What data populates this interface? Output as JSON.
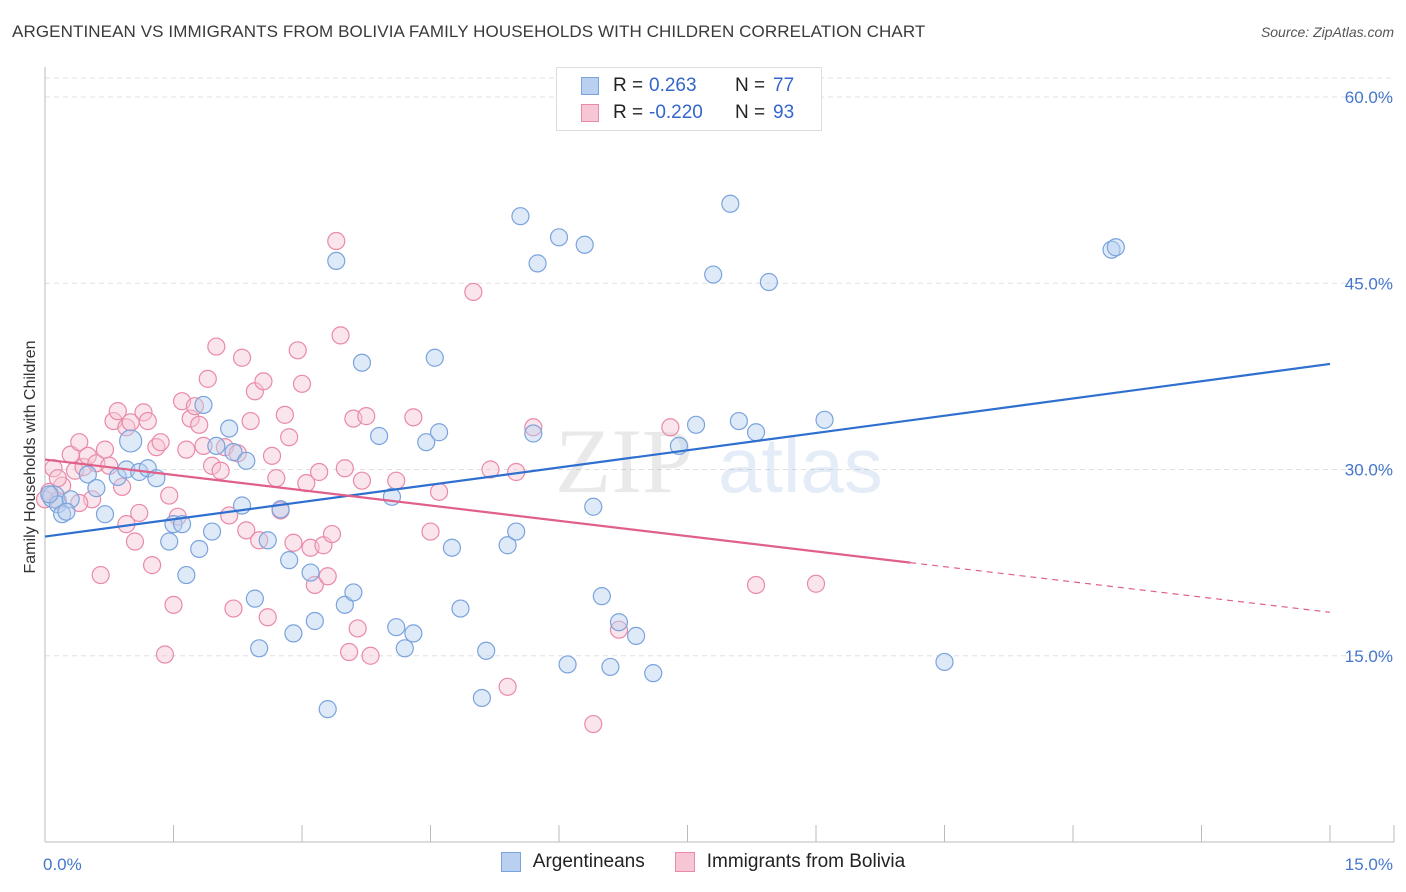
{
  "title": "ARGENTINEAN VS IMMIGRANTS FROM BOLIVIA FAMILY HOUSEHOLDS WITH CHILDREN CORRELATION CHART",
  "source": "Source: ZipAtlas.com",
  "watermark": {
    "zip": "ZIP",
    "atlas": "atlas"
  },
  "legend": {
    "rows": [
      {
        "r_label": "R =",
        "r_value": "0.263",
        "n_label": "N =",
        "n_value": "77",
        "fill": "#b9d0f0",
        "stroke": "#7aa3dd"
      },
      {
        "r_label": "R =",
        "r_value": "-0.220",
        "n_label": "N =",
        "n_value": "93",
        "fill": "#f7c6d5",
        "stroke": "#e98aa8"
      }
    ]
  },
  "bottom_legend": {
    "items": [
      {
        "label": "Argentineans",
        "fill": "#b9d0f0",
        "stroke": "#7aa3dd"
      },
      {
        "label": "Immigrants from Bolivia",
        "fill": "#f7c6d5",
        "stroke": "#e98aa8"
      }
    ]
  },
  "colors": {
    "blue_line": "#2f6fcf",
    "pink_line": "#e0608a",
    "tick_text": "#4477cc",
    "grid": "#e0e0e0"
  },
  "chart_data": {
    "type": "scatter",
    "title": "ARGENTINEAN VS IMMIGRANTS FROM BOLIVIA FAMILY HOUSEHOLDS WITH CHILDREN CORRELATION CHART",
    "xlabel": "",
    "ylabel": "Family Households with Children",
    "xlim": [
      0,
      15
    ],
    "ylim": [
      0,
      60
    ],
    "x_ticks": [
      "0.0%",
      "15.0%"
    ],
    "y_ticks": [
      "15.0%",
      "30.0%",
      "45.0%",
      "60.0%"
    ],
    "y_tick_values": [
      15,
      30,
      45,
      60
    ],
    "grid": true,
    "legend_position": "top-center",
    "series": [
      {
        "name": "Argentineans",
        "color": "#7aa3dd",
        "trend": {
          "x": [
            0,
            15
          ],
          "y": [
            24.6,
            38.5
          ]
        },
        "points": [
          [
            0.1,
            27.8
          ],
          [
            0.15,
            27.2
          ],
          [
            0.2,
            26.4
          ],
          [
            0.3,
            27.6
          ],
          [
            0.5,
            29.6
          ],
          [
            0.6,
            28.5
          ],
          [
            0.7,
            26.4
          ],
          [
            0.85,
            29.4
          ],
          [
            0.95,
            30.0
          ],
          [
            1.1,
            29.8
          ],
          [
            1.2,
            30.1
          ],
          [
            1.3,
            29.3
          ],
          [
            1.45,
            24.2
          ],
          [
            1.5,
            25.6
          ],
          [
            1.6,
            25.6
          ],
          [
            1.65,
            21.5
          ],
          [
            1.8,
            23.6
          ],
          [
            1.85,
            35.2
          ],
          [
            1.95,
            25.0
          ],
          [
            2.0,
            31.9
          ],
          [
            2.15,
            33.3
          ],
          [
            2.2,
            31.4
          ],
          [
            2.3,
            27.1
          ],
          [
            2.35,
            30.7
          ],
          [
            2.45,
            19.6
          ],
          [
            2.5,
            15.6
          ],
          [
            2.6,
            24.3
          ],
          [
            2.75,
            26.8
          ],
          [
            2.85,
            22.7
          ],
          [
            2.9,
            16.8
          ],
          [
            3.1,
            21.7
          ],
          [
            3.15,
            17.8
          ],
          [
            3.3,
            10.7
          ],
          [
            3.4,
            46.8
          ],
          [
            3.5,
            19.1
          ],
          [
            3.6,
            20.1
          ],
          [
            3.7,
            38.6
          ],
          [
            3.9,
            32.7
          ],
          [
            4.05,
            27.8
          ],
          [
            4.1,
            17.3
          ],
          [
            4.2,
            15.6
          ],
          [
            4.3,
            16.8
          ],
          [
            4.45,
            32.2
          ],
          [
            4.55,
            39.0
          ],
          [
            4.6,
            33.0
          ],
          [
            4.75,
            23.7
          ],
          [
            4.85,
            18.8
          ],
          [
            5.1,
            11.6
          ],
          [
            5.15,
            15.4
          ],
          [
            5.4,
            23.9
          ],
          [
            5.5,
            25.0
          ],
          [
            5.55,
            50.4
          ],
          [
            5.7,
            32.9
          ],
          [
            5.75,
            46.6
          ],
          [
            6.0,
            48.7
          ],
          [
            6.1,
            14.3
          ],
          [
            6.3,
            48.1
          ],
          [
            6.4,
            27.0
          ],
          [
            6.5,
            19.8
          ],
          [
            6.6,
            14.1
          ],
          [
            6.7,
            17.7
          ],
          [
            6.9,
            16.6
          ],
          [
            7.1,
            13.6
          ],
          [
            7.4,
            31.9
          ],
          [
            7.6,
            33.6
          ],
          [
            7.8,
            45.7
          ],
          [
            8.0,
            51.4
          ],
          [
            8.1,
            33.9
          ],
          [
            8.3,
            33.0
          ],
          [
            8.45,
            45.1
          ],
          [
            9.1,
            34.0
          ],
          [
            10.5,
            14.5
          ],
          [
            12.45,
            47.7
          ],
          [
            12.5,
            47.9
          ],
          [
            0.05,
            28.0
          ],
          [
            0.25,
            26.6
          ],
          [
            1.0,
            32.3
          ]
        ]
      },
      {
        "name": "Immigrants from Bolivia",
        "color": "#e98aa8",
        "trend": {
          "x": [
            0,
            10.1
          ],
          "y": [
            30.8,
            22.5
          ]
        },
        "trend_dashed": {
          "x": [
            10.1,
            15
          ],
          "y": [
            22.5,
            18.5
          ]
        },
        "points": [
          [
            0.05,
            28.2
          ],
          [
            0.1,
            30.1
          ],
          [
            0.15,
            27.5
          ],
          [
            0.2,
            28.7
          ],
          [
            0.3,
            31.2
          ],
          [
            0.35,
            29.9
          ],
          [
            0.4,
            32.2
          ],
          [
            0.45,
            30.2
          ],
          [
            0.5,
            31.1
          ],
          [
            0.55,
            27.6
          ],
          [
            0.6,
            30.5
          ],
          [
            0.65,
            21.5
          ],
          [
            0.7,
            31.6
          ],
          [
            0.75,
            30.3
          ],
          [
            0.8,
            33.9
          ],
          [
            0.85,
            34.7
          ],
          [
            0.9,
            28.6
          ],
          [
            0.95,
            33.4
          ],
          [
            1.0,
            33.8
          ],
          [
            1.05,
            24.2
          ],
          [
            1.1,
            26.5
          ],
          [
            1.15,
            34.6
          ],
          [
            1.2,
            33.9
          ],
          [
            1.25,
            22.3
          ],
          [
            1.3,
            31.8
          ],
          [
            1.35,
            32.2
          ],
          [
            1.4,
            15.1
          ],
          [
            1.45,
            27.9
          ],
          [
            1.5,
            19.1
          ],
          [
            1.55,
            26.2
          ],
          [
            1.6,
            35.5
          ],
          [
            1.65,
            31.6
          ],
          [
            1.7,
            34.1
          ],
          [
            1.75,
            35.1
          ],
          [
            1.8,
            33.6
          ],
          [
            1.85,
            31.9
          ],
          [
            1.9,
            37.3
          ],
          [
            1.95,
            30.3
          ],
          [
            2.0,
            39.9
          ],
          [
            2.05,
            29.9
          ],
          [
            2.1,
            31.8
          ],
          [
            2.15,
            26.3
          ],
          [
            2.2,
            18.8
          ],
          [
            2.25,
            31.3
          ],
          [
            2.3,
            39.0
          ],
          [
            2.35,
            25.1
          ],
          [
            2.4,
            33.9
          ],
          [
            2.45,
            36.3
          ],
          [
            2.5,
            24.3
          ],
          [
            2.55,
            37.1
          ],
          [
            2.6,
            18.1
          ],
          [
            2.65,
            31.1
          ],
          [
            2.7,
            29.3
          ],
          [
            2.75,
            26.7
          ],
          [
            2.8,
            34.4
          ],
          [
            2.85,
            32.6
          ],
          [
            2.9,
            24.1
          ],
          [
            2.95,
            39.6
          ],
          [
            3.0,
            36.9
          ],
          [
            3.05,
            28.9
          ],
          [
            3.1,
            23.7
          ],
          [
            3.15,
            20.7
          ],
          [
            3.2,
            29.8
          ],
          [
            3.25,
            23.9
          ],
          [
            3.3,
            21.4
          ],
          [
            3.35,
            24.8
          ],
          [
            3.4,
            48.4
          ],
          [
            3.45,
            40.8
          ],
          [
            3.5,
            30.1
          ],
          [
            3.55,
            15.3
          ],
          [
            3.6,
            34.1
          ],
          [
            3.65,
            17.2
          ],
          [
            3.7,
            29.1
          ],
          [
            3.75,
            34.3
          ],
          [
            3.8,
            15.0
          ],
          [
            4.1,
            29.1
          ],
          [
            4.3,
            34.2
          ],
          [
            4.5,
            25.0
          ],
          [
            4.6,
            28.2
          ],
          [
            5.0,
            44.3
          ],
          [
            5.2,
            30.0
          ],
          [
            5.4,
            12.5
          ],
          [
            5.5,
            29.8
          ],
          [
            5.7,
            33.4
          ],
          [
            6.4,
            9.5
          ],
          [
            6.7,
            17.1
          ],
          [
            7.3,
            33.4
          ],
          [
            8.3,
            20.7
          ],
          [
            9.0,
            20.8
          ],
          [
            0.0,
            27.6
          ],
          [
            0.15,
            29.3
          ],
          [
            0.4,
            27.3
          ],
          [
            0.95,
            25.6
          ]
        ]
      }
    ]
  }
}
